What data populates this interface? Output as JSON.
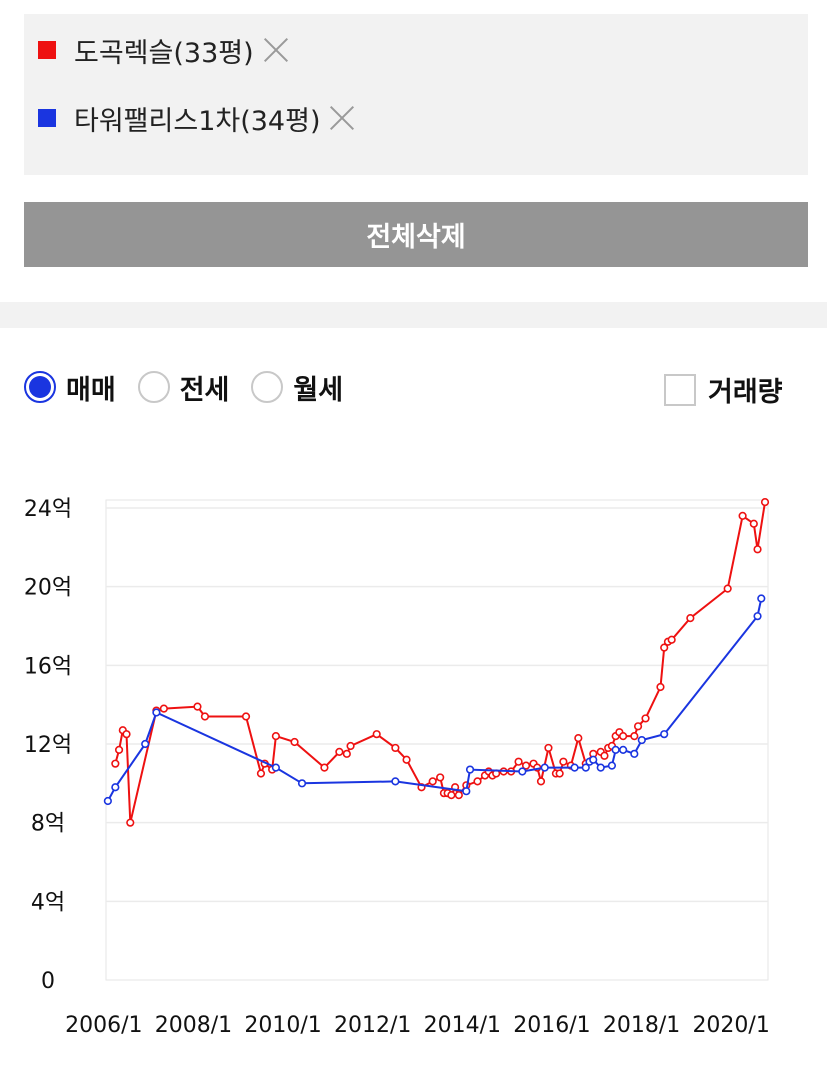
{
  "compare_list": {
    "items": [
      {
        "label": "도곡렉슬(33평)",
        "color": "#ee1111"
      },
      {
        "label": "타워팰리스1차(34평)",
        "color": "#1a35e0"
      }
    ],
    "clear_all_label": "전체삭제"
  },
  "deal_type": {
    "options": [
      "매매",
      "전세",
      "월세"
    ],
    "selected": "매매"
  },
  "volume_toggle": {
    "label": "거래량",
    "checked": false
  },
  "chart_data": {
    "type": "line",
    "x_type": "date",
    "ylim": [
      0,
      24
    ],
    "xlim": [
      "2006-01",
      "2020-07"
    ],
    "y_ticks": [
      0,
      4,
      8,
      12,
      16,
      20,
      24
    ],
    "y_tick_labels": [
      "0",
      "4억",
      "8억",
      "12억",
      "16억",
      "20억",
      "24억"
    ],
    "x_ticks": [
      "2006-01",
      "2008-01",
      "2010-01",
      "2012-01",
      "2014-01",
      "2016-01",
      "2018-01",
      "2020-01"
    ],
    "x_tick_labels": [
      "2006/1",
      "2008/1",
      "2010/1",
      "2012/1",
      "2014/1",
      "2016/1",
      "2018/1",
      "2020/1"
    ],
    "grid": true,
    "series": [
      {
        "name": "도곡렉슬(33평)",
        "color": "#ee1111",
        "points": [
          [
            "2006-03",
            11.0
          ],
          [
            "2006-04",
            11.7
          ],
          [
            "2006-05",
            12.7
          ],
          [
            "2006-06",
            12.5
          ],
          [
            "2006-07",
            8.0
          ],
          [
            "2007-02",
            13.7
          ],
          [
            "2007-04",
            13.8
          ],
          [
            "2008-01",
            13.9
          ],
          [
            "2008-03",
            13.4
          ],
          [
            "2009-02",
            13.4
          ],
          [
            "2009-06",
            10.5
          ],
          [
            "2009-07",
            11.0
          ],
          [
            "2009-09",
            10.7
          ],
          [
            "2009-10",
            12.4
          ],
          [
            "2010-03",
            12.1
          ],
          [
            "2010-11",
            10.8
          ],
          [
            "2011-03",
            11.6
          ],
          [
            "2011-05",
            11.5
          ],
          [
            "2011-06",
            11.9
          ],
          [
            "2012-01",
            12.5
          ],
          [
            "2012-06",
            11.8
          ],
          [
            "2012-09",
            11.2
          ],
          [
            "2013-01",
            9.8
          ],
          [
            "2013-04",
            10.1
          ],
          [
            "2013-06",
            10.3
          ],
          [
            "2013-07",
            9.5
          ],
          [
            "2013-08",
            9.5
          ],
          [
            "2013-09",
            9.4
          ],
          [
            "2013-10",
            9.8
          ],
          [
            "2013-11",
            9.4
          ],
          [
            "2014-01",
            9.9
          ],
          [
            "2014-04",
            10.1
          ],
          [
            "2014-06",
            10.4
          ],
          [
            "2014-07",
            10.6
          ],
          [
            "2014-08",
            10.4
          ],
          [
            "2014-09",
            10.5
          ],
          [
            "2014-11",
            10.6
          ],
          [
            "2015-01",
            10.6
          ],
          [
            "2015-03",
            11.1
          ],
          [
            "2015-05",
            10.9
          ],
          [
            "2015-07",
            11.0
          ],
          [
            "2015-08",
            10.8
          ],
          [
            "2015-09",
            10.1
          ],
          [
            "2015-11",
            11.8
          ],
          [
            "2016-01",
            10.5
          ],
          [
            "2016-02",
            10.5
          ],
          [
            "2016-03",
            11.1
          ],
          [
            "2016-05",
            10.9
          ],
          [
            "2016-07",
            12.3
          ],
          [
            "2016-09",
            11.0
          ],
          [
            "2016-11",
            11.5
          ],
          [
            "2017-01",
            11.6
          ],
          [
            "2017-02",
            11.4
          ],
          [
            "2017-03",
            11.8
          ],
          [
            "2017-04",
            11.9
          ],
          [
            "2017-05",
            12.4
          ],
          [
            "2017-06",
            12.6
          ],
          [
            "2017-07",
            12.4
          ],
          [
            "2017-10",
            12.4
          ],
          [
            "2017-11",
            12.9
          ],
          [
            "2018-01",
            13.3
          ],
          [
            "2018-05",
            14.9
          ],
          [
            "2018-06",
            16.9
          ],
          [
            "2018-07",
            17.2
          ],
          [
            "2018-08",
            17.3
          ],
          [
            "2019-01",
            18.4
          ],
          [
            "2019-11",
            19.9
          ],
          [
            "2020-03",
            23.6
          ],
          [
            "2020-06",
            23.2
          ],
          [
            "2020-07",
            21.9
          ],
          [
            "2020-09",
            24.3
          ]
        ]
      },
      {
        "name": "타워팰리스1차(34평)",
        "color": "#1a35e0",
        "points": [
          [
            "2006-01",
            9.1
          ],
          [
            "2006-03",
            9.8
          ],
          [
            "2006-11",
            12.0
          ],
          [
            "2007-02",
            13.6
          ],
          [
            "2009-10",
            10.8
          ],
          [
            "2010-05",
            10.0
          ],
          [
            "2012-06",
            10.1
          ],
          [
            "2014-01",
            9.6
          ],
          [
            "2014-02",
            10.7
          ],
          [
            "2015-04",
            10.6
          ],
          [
            "2015-10",
            10.8
          ],
          [
            "2016-06",
            10.8
          ],
          [
            "2016-09",
            10.8
          ],
          [
            "2016-10",
            11.1
          ],
          [
            "2016-11",
            11.2
          ],
          [
            "2017-01",
            10.8
          ],
          [
            "2017-04",
            10.9
          ],
          [
            "2017-05",
            11.7
          ],
          [
            "2017-07",
            11.7
          ],
          [
            "2017-10",
            11.5
          ],
          [
            "2017-12",
            12.2
          ],
          [
            "2018-06",
            12.5
          ],
          [
            "2020-07",
            18.5
          ],
          [
            "2020-08",
            19.4
          ]
        ]
      }
    ]
  }
}
